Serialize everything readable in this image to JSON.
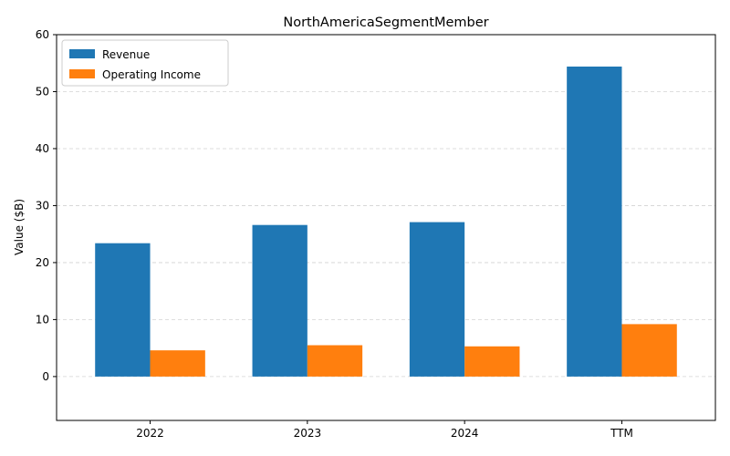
{
  "chart_data": {
    "type": "bar",
    "title": "NorthAmericaSegmentMember",
    "xlabel": "",
    "ylabel": "Value ($B)",
    "categories": [
      "2022",
      "2023",
      "2024",
      "TTM"
    ],
    "series": [
      {
        "name": "Revenue",
        "color": "#1f77b4",
        "values": [
          23.4,
          26.6,
          27.1,
          54.4
        ]
      },
      {
        "name": "Operating Income",
        "color": "#ff7f0e",
        "values": [
          4.6,
          5.5,
          5.3,
          9.2
        ]
      }
    ],
    "ylim": [
      -7.7,
      60
    ],
    "yticks": [
      0,
      10,
      20,
      30,
      40,
      50,
      60
    ],
    "grid": "y-dashed",
    "legend_position": "top-left"
  }
}
